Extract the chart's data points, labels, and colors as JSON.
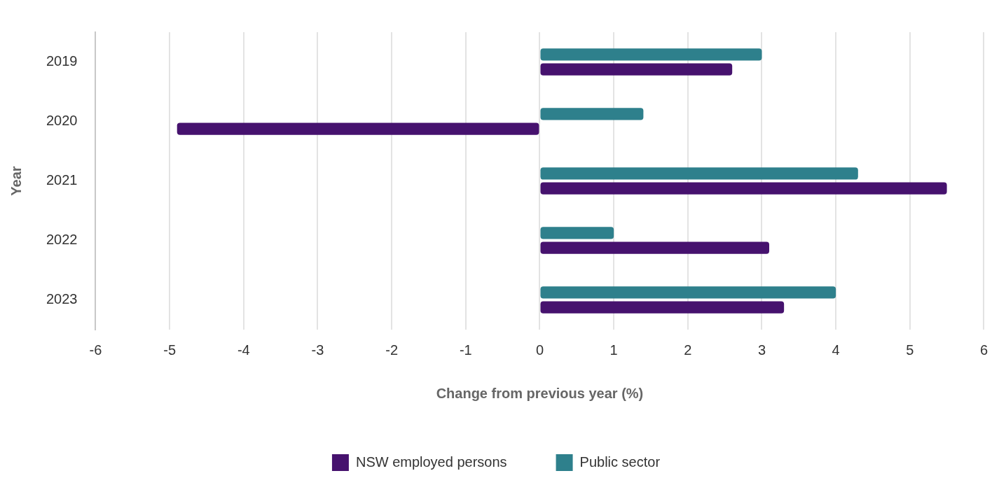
{
  "chart_data": {
    "type": "bar",
    "orientation": "horizontal",
    "xlabel": "Change from previous year (%)",
    "ylabel": "Year",
    "categories": [
      "2019",
      "2020",
      "2021",
      "2022",
      "2023"
    ],
    "series": [
      {
        "name": "Public sector",
        "color": "#2e808c",
        "values": [
          3.0,
          1.4,
          4.3,
          1.0,
          4.0
        ]
      },
      {
        "name": "NSW employed persons",
        "color": "#46126e",
        "values": [
          2.6,
          -4.9,
          5.5,
          3.1,
          3.3
        ]
      }
    ],
    "xlim": [
      -6,
      6
    ],
    "xticks": [
      -6,
      -5,
      -4,
      -3,
      -2,
      -1,
      0,
      1,
      2,
      3,
      4,
      5,
      6
    ],
    "grid": "x",
    "legend": "bottom"
  }
}
